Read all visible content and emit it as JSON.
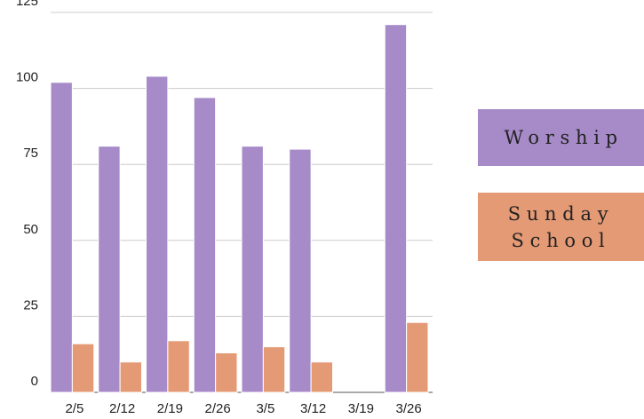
{
  "chart_data": {
    "type": "bar",
    "categories": [
      "2/5",
      "2/12",
      "2/19",
      "2/26",
      "3/5",
      "3/12",
      "3/19",
      "3/26"
    ],
    "series": [
      {
        "name": "Worship",
        "color": "#a78bc9",
        "values": [
          102,
          81,
          104,
          97,
          81,
          80,
          0,
          121
        ]
      },
      {
        "name": "Sunday School",
        "color": "#e59a76",
        "values": [
          16,
          10,
          17,
          13,
          15,
          10,
          0,
          23
        ]
      }
    ],
    "ylim": [
      0,
      125
    ],
    "yticks": [
      0,
      25,
      50,
      75,
      100,
      125
    ],
    "grid": true,
    "legend": "right"
  }
}
